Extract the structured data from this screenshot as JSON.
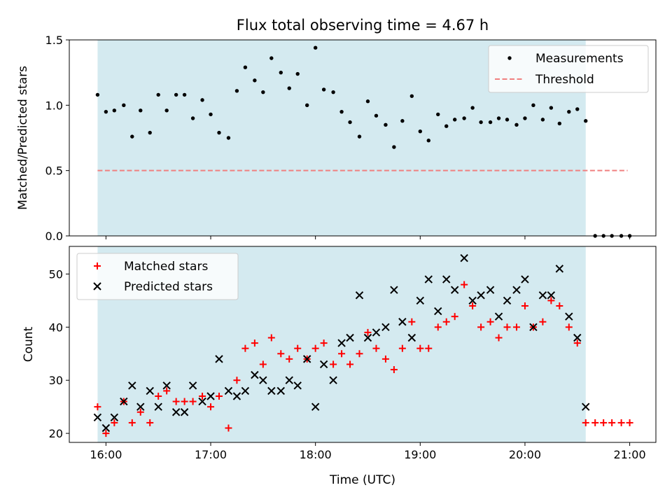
{
  "chart_data": [
    {
      "type": "scatter",
      "title": "Flux total observing time = 4.67 h",
      "ylabel": "Matched/Predicted stars",
      "xlabel": "",
      "xlim": [
        15.65,
        21.25
      ],
      "ylim": [
        0,
        1.5
      ],
      "yticks": [
        0,
        0.5,
        1.0,
        1.5
      ],
      "ytick_labels": [
        "0.0",
        "0.5",
        "1.0",
        "1.5"
      ],
      "xticks": [
        16,
        17,
        18,
        19,
        20,
        21
      ],
      "observing_window": [
        15.92,
        20.58
      ],
      "observing_window_color": "#d4eaf0",
      "legend_position": "top-right",
      "series": [
        {
          "name": "Measurements",
          "marker": "dot",
          "color": "#000000",
          "x": [
            15.92,
            16.0,
            16.08,
            16.17,
            16.25,
            16.33,
            16.42,
            16.5,
            16.58,
            16.67,
            16.75,
            16.83,
            16.92,
            17.0,
            17.08,
            17.17,
            17.25,
            17.33,
            17.42,
            17.5,
            17.58,
            17.67,
            17.75,
            17.83,
            17.92,
            18.0,
            18.08,
            18.17,
            18.25,
            18.33,
            18.42,
            18.5,
            18.58,
            18.67,
            18.75,
            18.83,
            18.92,
            19.0,
            19.08,
            19.17,
            19.25,
            19.33,
            19.42,
            19.5,
            19.58,
            19.67,
            19.75,
            19.83,
            19.92,
            20.0,
            20.08,
            20.17,
            20.25,
            20.33,
            20.42,
            20.5,
            20.58,
            20.67,
            20.75,
            20.83,
            20.92,
            21.0
          ],
          "y": [
            1.08,
            0.95,
            0.96,
            1.0,
            0.76,
            0.96,
            0.79,
            1.08,
            0.96,
            1.08,
            1.08,
            0.9,
            1.04,
            0.93,
            0.79,
            0.75,
            1.11,
            1.29,
            1.19,
            1.1,
            1.36,
            1.25,
            1.13,
            1.24,
            1.0,
            1.44,
            1.12,
            1.1,
            0.95,
            0.87,
            0.76,
            1.03,
            0.92,
            0.85,
            0.68,
            0.88,
            1.07,
            0.8,
            0.73,
            0.93,
            0.84,
            0.89,
            0.9,
            0.98,
            0.87,
            0.87,
            0.9,
            0.89,
            0.85,
            0.9,
            1.0,
            0.89,
            0.98,
            0.86,
            0.95,
            0.97,
            0.88,
            0.0,
            0.0,
            0.0,
            0.0,
            0.0
          ]
        },
        {
          "name": "Threshold",
          "marker": "dashed-line",
          "color": "#f08080",
          "x": [
            15.92,
            20.98
          ],
          "y": [
            0.5,
            0.5
          ]
        }
      ]
    },
    {
      "type": "scatter",
      "title": "",
      "xlabel": "Time (UTC)",
      "ylabel": "Count",
      "xlim": [
        15.65,
        21.25
      ],
      "ylim": [
        18.3,
        55.2
      ],
      "yticks": [
        20,
        30,
        40,
        50
      ],
      "ytick_labels": [
        "20",
        "30",
        "40",
        "50"
      ],
      "xticks": [
        16,
        17,
        18,
        19,
        20,
        21
      ],
      "xtick_labels": [
        "16:00",
        "17:00",
        "18:00",
        "19:00",
        "20:00",
        "21:00"
      ],
      "observing_window": [
        15.92,
        20.58
      ],
      "observing_window_color": "#d4eaf0",
      "legend_position": "top-left",
      "series": [
        {
          "name": "Matched stars",
          "marker": "plus",
          "color": "#ff0000",
          "x": [
            15.92,
            16.0,
            16.08,
            16.17,
            16.25,
            16.33,
            16.42,
            16.5,
            16.58,
            16.67,
            16.75,
            16.83,
            16.92,
            17.0,
            17.08,
            17.17,
            17.25,
            17.33,
            17.42,
            17.5,
            17.58,
            17.67,
            17.75,
            17.83,
            17.92,
            18.0,
            18.08,
            18.17,
            18.25,
            18.33,
            18.42,
            18.5,
            18.58,
            18.67,
            18.75,
            18.83,
            18.92,
            19.0,
            19.08,
            19.17,
            19.25,
            19.33,
            19.42,
            19.5,
            19.58,
            19.67,
            19.75,
            19.83,
            19.92,
            20.0,
            20.08,
            20.17,
            20.25,
            20.33,
            20.42,
            20.5,
            20.58,
            20.67,
            20.75,
            20.83,
            20.92,
            21.0
          ],
          "y": [
            25,
            20,
            22,
            26,
            22,
            24,
            22,
            27,
            28,
            26,
            26,
            26,
            27,
            25,
            27,
            21,
            30,
            36,
            37,
            33,
            38,
            35,
            34,
            36,
            34,
            36,
            37,
            33,
            35,
            33,
            35,
            39,
            36,
            34,
            32,
            36,
            41,
            36,
            36,
            40,
            41,
            42,
            48,
            44,
            40,
            41,
            38,
            40,
            40,
            44,
            40,
            41,
            45,
            44,
            40,
            37,
            22,
            22,
            22,
            22,
            22,
            22
          ]
        },
        {
          "name": "Predicted stars",
          "marker": "x",
          "color": "#000000",
          "x": [
            15.92,
            16.0,
            16.08,
            16.17,
            16.25,
            16.33,
            16.42,
            16.5,
            16.58,
            16.67,
            16.75,
            16.83,
            16.92,
            17.0,
            17.08,
            17.17,
            17.25,
            17.33,
            17.42,
            17.5,
            17.58,
            17.67,
            17.75,
            17.83,
            17.92,
            18.0,
            18.08,
            18.17,
            18.25,
            18.33,
            18.42,
            18.5,
            18.58,
            18.67,
            18.75,
            18.83,
            18.92,
            19.0,
            19.08,
            19.17,
            19.25,
            19.33,
            19.42,
            19.5,
            19.58,
            19.67,
            19.75,
            19.83,
            19.92,
            20.0,
            20.08,
            20.17,
            20.25,
            20.33,
            20.42,
            20.5,
            20.58
          ],
          "y": [
            23,
            21,
            23,
            26,
            29,
            25,
            28,
            25,
            29,
            24,
            24,
            29,
            26,
            27,
            34,
            28,
            27,
            28,
            31,
            30,
            28,
            28,
            30,
            29,
            34,
            25,
            33,
            30,
            37,
            38,
            46,
            38,
            39,
            40,
            47,
            41,
            38,
            45,
            49,
            43,
            49,
            47,
            53,
            45,
            46,
            47,
            42,
            45,
            47,
            49,
            40,
            46,
            46,
            51,
            42,
            38,
            25
          ]
        }
      ]
    }
  ]
}
